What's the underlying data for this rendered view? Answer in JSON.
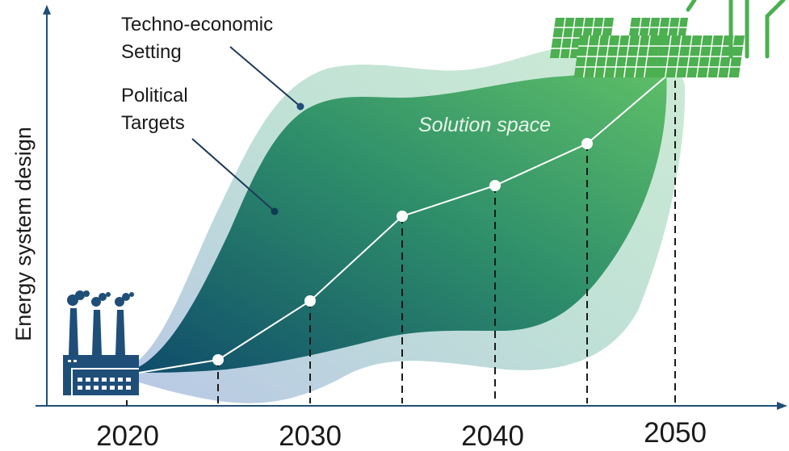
{
  "axes": {
    "y_label": "Energy system design",
    "x_ticks": [
      "2020",
      "2030",
      "2040",
      "2050"
    ]
  },
  "labels": {
    "techno_economic_line1": "Techno-economic",
    "techno_economic_line2": "Setting",
    "political_line1": "Political",
    "political_line2": "Targets",
    "solution_space": "Solution space"
  },
  "colors": {
    "axis": "#1f4e79",
    "outer_region": "#c9e6d6",
    "inner_dark": "#0f4c6b",
    "inner_light": "#5fbf68",
    "factory": "#1f4e79",
    "solar_panel": "#4caf50",
    "wind_turbine": "#4caf50"
  },
  "icons": [
    "factory-icon",
    "solar-panel-icon",
    "wind-turbine-icon"
  ]
}
